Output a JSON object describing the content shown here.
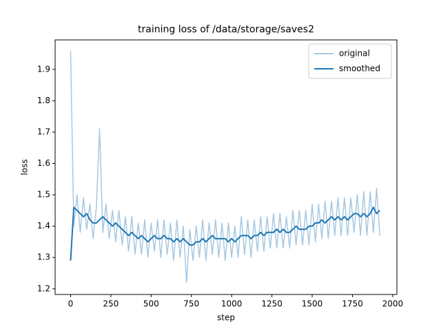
{
  "chart_data": {
    "type": "line",
    "title": "training loss of /data/storage/saves2",
    "xlabel": "step",
    "ylabel": "loss",
    "x": [
      0,
      20,
      40,
      60,
      80,
      100,
      120,
      140,
      160,
      180,
      200,
      220,
      240,
      260,
      280,
      300,
      320,
      340,
      360,
      380,
      400,
      420,
      440,
      460,
      480,
      500,
      520,
      540,
      560,
      580,
      600,
      620,
      640,
      660,
      680,
      700,
      720,
      740,
      760,
      780,
      800,
      820,
      840,
      860,
      880,
      900,
      920,
      940,
      960,
      980,
      1000,
      1020,
      1040,
      1060,
      1080,
      1100,
      1120,
      1140,
      1160,
      1180,
      1200,
      1220,
      1240,
      1260,
      1280,
      1300,
      1320,
      1340,
      1360,
      1380,
      1400,
      1420,
      1440,
      1460,
      1480,
      1500,
      1520,
      1540,
      1560,
      1580,
      1600,
      1620,
      1640,
      1660,
      1680,
      1700,
      1720,
      1740,
      1760,
      1780,
      1800,
      1820,
      1840,
      1860,
      1880,
      1900,
      1920
    ],
    "series": [
      {
        "name": "original",
        "color": "#a6c8e1",
        "values": [
          1.96,
          1.4,
          1.5,
          1.38,
          1.49,
          1.39,
          1.47,
          1.36,
          1.46,
          1.71,
          1.38,
          1.47,
          1.36,
          1.45,
          1.35,
          1.45,
          1.34,
          1.43,
          1.32,
          1.43,
          1.31,
          1.41,
          1.31,
          1.42,
          1.3,
          1.41,
          1.32,
          1.42,
          1.3,
          1.42,
          1.31,
          1.41,
          1.29,
          1.42,
          1.3,
          1.4,
          1.22,
          1.39,
          1.29,
          1.4,
          1.3,
          1.42,
          1.29,
          1.41,
          1.31,
          1.42,
          1.3,
          1.41,
          1.29,
          1.41,
          1.3,
          1.4,
          1.3,
          1.43,
          1.31,
          1.42,
          1.3,
          1.42,
          1.32,
          1.43,
          1.32,
          1.43,
          1.33,
          1.44,
          1.33,
          1.44,
          1.33,
          1.43,
          1.33,
          1.45,
          1.34,
          1.45,
          1.34,
          1.45,
          1.34,
          1.47,
          1.35,
          1.47,
          1.36,
          1.48,
          1.36,
          1.48,
          1.37,
          1.49,
          1.37,
          1.49,
          1.37,
          1.49,
          1.38,
          1.5,
          1.37,
          1.51,
          1.37,
          1.51,
          1.38,
          1.52,
          1.37
        ]
      },
      {
        "name": "smoothed",
        "color": "#1f77b4",
        "values": [
          1.29,
          1.46,
          1.45,
          1.44,
          1.43,
          1.44,
          1.42,
          1.41,
          1.41,
          1.42,
          1.43,
          1.42,
          1.41,
          1.4,
          1.41,
          1.4,
          1.39,
          1.38,
          1.37,
          1.38,
          1.37,
          1.36,
          1.37,
          1.36,
          1.35,
          1.36,
          1.37,
          1.36,
          1.36,
          1.37,
          1.36,
          1.36,
          1.35,
          1.36,
          1.35,
          1.36,
          1.35,
          1.34,
          1.34,
          1.35,
          1.35,
          1.36,
          1.35,
          1.36,
          1.37,
          1.36,
          1.36,
          1.36,
          1.36,
          1.35,
          1.36,
          1.35,
          1.36,
          1.37,
          1.37,
          1.37,
          1.36,
          1.37,
          1.37,
          1.38,
          1.37,
          1.38,
          1.38,
          1.38,
          1.39,
          1.38,
          1.39,
          1.38,
          1.38,
          1.39,
          1.4,
          1.39,
          1.39,
          1.39,
          1.4,
          1.4,
          1.41,
          1.41,
          1.42,
          1.41,
          1.42,
          1.43,
          1.42,
          1.43,
          1.42,
          1.43,
          1.42,
          1.43,
          1.44,
          1.44,
          1.43,
          1.44,
          1.43,
          1.44,
          1.46,
          1.44,
          1.45
        ]
      }
    ],
    "xlim": [
      -96,
      2026
    ],
    "xticks": [
      0,
      250,
      500,
      750,
      1000,
      1250,
      1500,
      1750,
      2000
    ],
    "ylim": [
      1.182,
      1.994
    ],
    "yticks": [
      1.2,
      1.3,
      1.4,
      1.5,
      1.6,
      1.7,
      1.8,
      1.9
    ],
    "legend": "upper right"
  }
}
